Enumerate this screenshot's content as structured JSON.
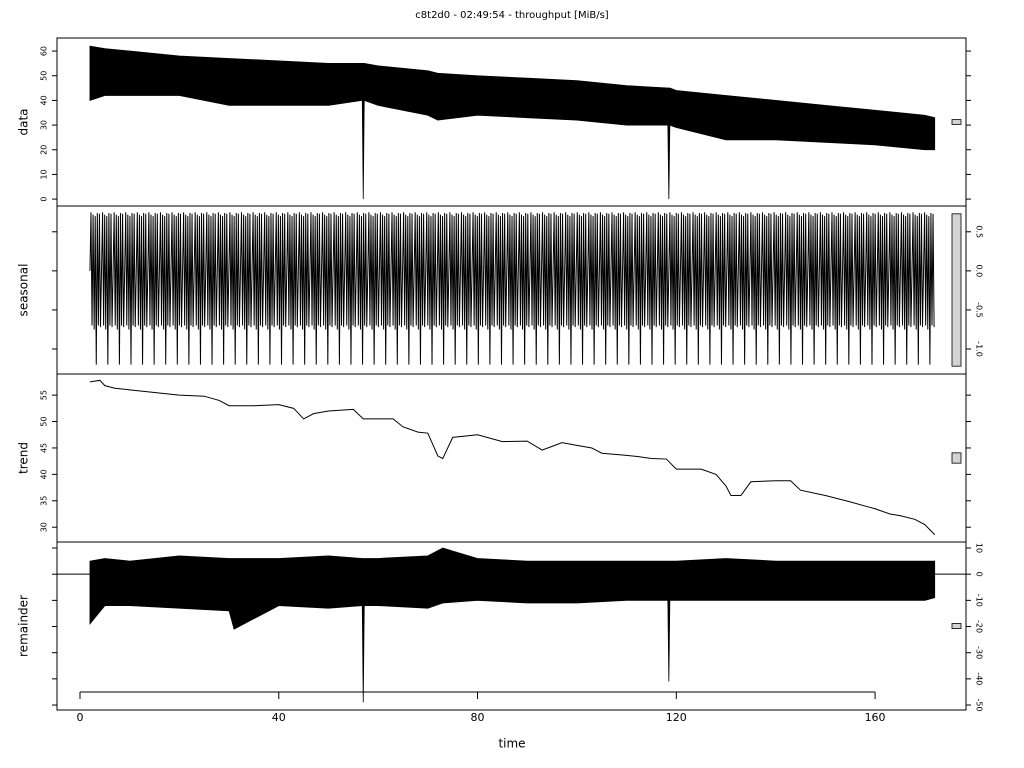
{
  "chart_data": {
    "type": "stl",
    "title": "c8t2d0 - 02:49:54 - throughput [MiB/s]",
    "xlabel": "time",
    "xlim": [
      -4.63,
      178.3
    ],
    "xticks": [
      0,
      40,
      80,
      120,
      160
    ],
    "color": "#000000",
    "range_bar_color": "#d3d3d3",
    "panels": [
      {
        "ylabel": "data",
        "ylim": [
          -2.8,
          65.3
        ],
        "yticks": [
          0,
          10,
          20,
          30,
          40,
          50,
          60
        ],
        "tick_side": "left",
        "envelope": {
          "x": [
            2,
            5,
            10,
            20,
            30,
            40,
            50,
            56.8,
            57,
            57.2,
            60,
            70,
            72,
            80,
            90,
            100,
            110,
            118.3,
            118.5,
            118.7,
            120,
            130,
            140,
            150,
            160,
            170,
            172
          ],
          "upper": [
            62,
            61,
            60,
            58,
            57,
            56,
            55,
            55,
            55,
            55,
            54,
            52,
            51,
            50,
            49,
            48,
            46,
            45,
            45,
            45,
            44,
            42,
            40,
            38,
            36,
            34,
            33
          ],
          "lower": [
            40,
            42,
            42,
            42,
            38,
            38,
            38,
            40,
            0,
            40,
            38,
            34,
            32,
            34,
            33,
            32,
            30,
            30,
            0,
            30,
            29,
            24,
            24,
            23,
            22,
            20,
            20
          ]
        }
      },
      {
        "ylabel": "seasonal",
        "ylim": [
          -1.32,
          0.83
        ],
        "yticks": [
          {
            "value": -1.0,
            "label": "-1.0"
          },
          -0.5,
          {
            "value": 0.0,
            "label": "0.0"
          },
          0.5
        ],
        "tick_side": "right",
        "cycle": {
          "x_start": 2,
          "x_end": 172,
          "period": 2.33,
          "values": [
            0.0,
            0.75,
            -0.7,
            0.72,
            -0.75,
            0.7,
            -1.2,
            0.74,
            -0.7,
            0.73,
            -0.72,
            0.0
          ]
        }
      },
      {
        "ylabel": "trend",
        "ylim": [
          27.2,
          59.0
        ],
        "yticks": [
          30,
          35,
          40,
          45,
          50,
          55
        ],
        "tick_side": "left",
        "x": [
          2,
          4,
          5,
          7,
          10,
          15,
          20,
          25,
          28,
          30,
          35,
          40,
          43,
          45,
          47,
          50,
          55,
          57,
          63,
          65,
          68,
          70,
          72,
          73,
          75,
          80,
          85,
          90,
          93,
          95,
          97,
          100,
          103,
          105,
          110,
          112,
          115,
          118,
          120,
          125,
          128,
          130,
          131,
          133,
          135,
          140,
          143,
          145,
          150,
          155,
          158,
          160,
          163,
          165,
          168,
          170,
          172
        ],
        "values": [
          57.5,
          57.8,
          56.8,
          56.3,
          56,
          55.5,
          55,
          54.8,
          54,
          53,
          53,
          53.2,
          52.5,
          50.5,
          51.5,
          52,
          52.3,
          50.5,
          50.5,
          49,
          48,
          47.8,
          43.5,
          43,
          47,
          47.5,
          46.2,
          46.3,
          44.6,
          45.3,
          46,
          45.5,
          45,
          44,
          43.6,
          43.4,
          43,
          42.9,
          41,
          41,
          40,
          37.8,
          36,
          36,
          38.6,
          38.8,
          38.8,
          37,
          36,
          34.8,
          34,
          33.5,
          32.5,
          32.2,
          31.5,
          30.5,
          28.6
        ]
      },
      {
        "ylabel": "remainder",
        "ylim": [
          -51.9,
          12.3
        ],
        "yticks": [
          -50,
          -40,
          -30,
          -20,
          -10,
          0,
          10
        ],
        "tick_side": "right",
        "zero_line": true,
        "envelope": {
          "x": [
            2,
            5,
            10,
            20,
            30,
            31,
            40,
            50,
            56.8,
            57,
            57.2,
            60,
            70,
            73,
            80,
            90,
            100,
            110,
            118.3,
            118.5,
            118.7,
            120,
            130,
            140,
            150,
            160,
            170,
            172
          ],
          "upper": [
            5,
            6,
            5,
            7,
            6,
            6,
            6,
            7,
            6,
            6,
            6,
            6,
            7,
            10,
            6,
            5,
            5,
            5,
            5,
            5,
            5,
            5,
            6,
            5,
            5,
            5,
            5,
            5
          ],
          "lower": [
            -19,
            -12,
            -12,
            -13,
            -14,
            -21,
            -12,
            -13,
            -12,
            -49,
            -12,
            -12,
            -13,
            -11,
            -10,
            -11,
            -11,
            -10,
            -10,
            -41,
            -10,
            -10,
            -10,
            -10,
            -10,
            -10,
            -10,
            -9
          ]
        }
      }
    ]
  }
}
